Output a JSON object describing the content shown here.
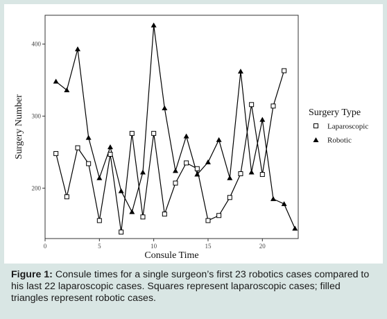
{
  "chart_data": {
    "type": "line",
    "xlabel": "Consule Time",
    "ylabel": "Surgery Number",
    "xlim": [
      0,
      23.3
    ],
    "ylim": [
      130,
      440
    ],
    "xticks": [
      0,
      5,
      10,
      15,
      20
    ],
    "yticks": [
      200,
      300,
      400
    ],
    "grid": false,
    "legend": {
      "title": "Surgery Type",
      "position": "right"
    },
    "series": [
      {
        "name": "Laparoscopic",
        "marker": "open-square",
        "color": "#000000",
        "x": [
          1,
          2,
          3,
          4,
          5,
          6,
          7,
          8,
          9,
          10,
          11,
          12,
          13,
          14,
          15,
          16,
          17,
          18,
          19,
          20,
          21,
          22
        ],
        "y": [
          248,
          188,
          256,
          234,
          155,
          247,
          139,
          276,
          160,
          276,
          164,
          207,
          235,
          227,
          155,
          162,
          187,
          220,
          316,
          219,
          314,
          363
        ]
      },
      {
        "name": "Robotic",
        "marker": "filled-triangle",
        "color": "#000000",
        "x": [
          1,
          2,
          3,
          4,
          5,
          6,
          7,
          8,
          9,
          10,
          11,
          12,
          13,
          14,
          15,
          16,
          17,
          18,
          19,
          20,
          21,
          22,
          23
        ],
        "y": [
          348,
          336,
          393,
          270,
          214,
          257,
          196,
          167,
          222,
          426,
          311,
          224,
          272,
          219,
          236,
          267,
          214,
          362,
          222,
          295,
          185,
          178,
          144
        ]
      }
    ]
  },
  "caption": {
    "label": "Figure 1:",
    "text": " Consule times for a single surgeon’s first 23 robotics cases compared to his last 22 laparoscopic cases. Squares represent laparoscopic cases; filled triangles represent robotic cases."
  }
}
